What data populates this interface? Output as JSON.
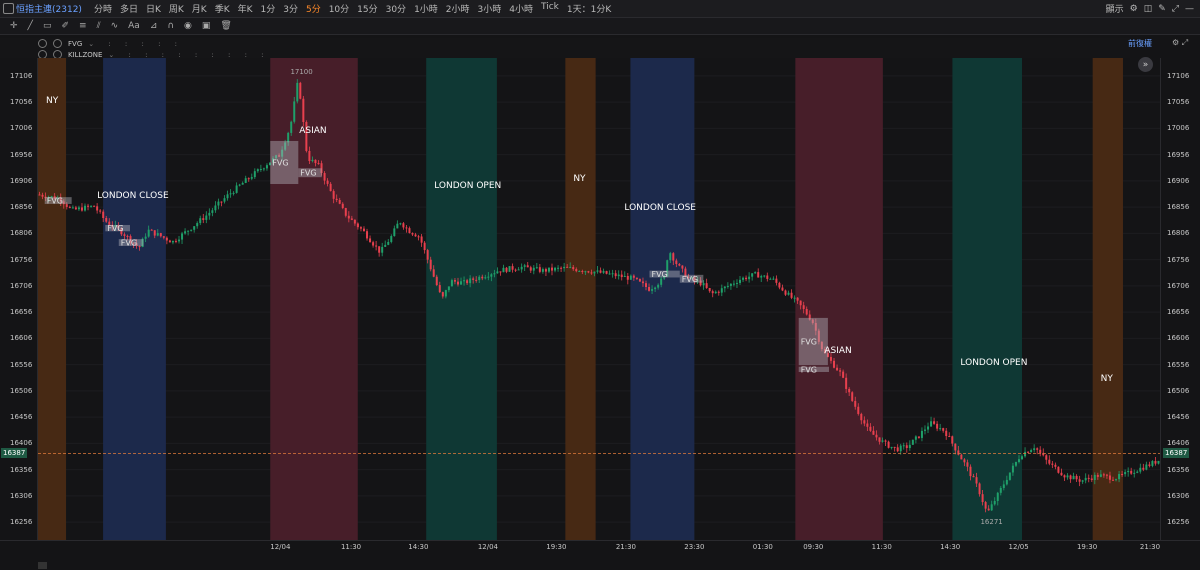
{
  "header": {
    "title": "恒指主連(2312)",
    "timeframes": [
      "分時",
      "多日",
      "日K",
      "周K",
      "月K",
      "季K",
      "年K",
      "1分",
      "3分",
      "5分",
      "10分",
      "15分",
      "30分",
      "1小時",
      "2小時",
      "3小時",
      "4小時",
      "Tick",
      "1天：1分K"
    ],
    "active_timeframe_index": 9,
    "right_label": "顯示"
  },
  "indicators": [
    {
      "name": "FVG"
    },
    {
      "name": "KILLZONE"
    }
  ],
  "restore_label": "前復權",
  "colors": {
    "background": "#141416",
    "up": "#1fa06a",
    "down": "#e8404e",
    "ny": "#4a2a14",
    "london_close": "#1c2a4e",
    "asian": "#4a1f2a",
    "london_open": "#0f3a36",
    "fvg": "#8a8a90",
    "price_line": "#e07a3a",
    "accent": "#ff8a2a"
  },
  "chart_data": {
    "type": "candlestick",
    "y_ticks": [
      17106,
      17056,
      17006,
      16956,
      16906,
      16856,
      16806,
      16756,
      16706,
      16656,
      16606,
      16556,
      16506,
      16456,
      16406,
      16356,
      16306,
      16256
    ],
    "ylim": [
      16222,
      17140
    ],
    "current_price": 16387,
    "x_labels": [
      "12/04",
      "11:30",
      "14:30",
      "12/04",
      "19:30",
      "21:30",
      "23:30",
      "01:30",
      "09:30",
      "11:30",
      "14:30",
      "12/05",
      "19:30",
      "21:30"
    ],
    "high_annotation": "17100",
    "low_annotation": "16271",
    "sessions": [
      {
        "label": "NY",
        "kind": "ny",
        "x0": 0.0,
        "x1": 0.025
      },
      {
        "label": "LONDON  CLOSE",
        "kind": "london_close",
        "x0": 0.058,
        "x1": 0.114
      },
      {
        "label": "ASIAN",
        "kind": "asian",
        "x0": 0.207,
        "x1": 0.285
      },
      {
        "label": "LONDON OPEN",
        "kind": "london_open",
        "x0": 0.346,
        "x1": 0.409
      },
      {
        "label": "NY",
        "kind": "ny",
        "x0": 0.47,
        "x1": 0.497
      },
      {
        "label": "LONDON  CLOSE",
        "kind": "london_close",
        "x0": 0.528,
        "x1": 0.585
      },
      {
        "label": "ASIAN",
        "kind": "asian",
        "x0": 0.675,
        "x1": 0.753
      },
      {
        "label": "LONDON OPEN",
        "kind": "london_open",
        "x0": 0.815,
        "x1": 0.877
      },
      {
        "label": "NY",
        "kind": "ny",
        "x0": 0.94,
        "x1": 0.967
      }
    ],
    "fvg_label": "FVG",
    "fvgs": [
      {
        "x0": 0.006,
        "x1": 0.03,
        "top": 16875,
        "bottom": 16862
      },
      {
        "x0": 0.06,
        "x1": 0.082,
        "top": 16822,
        "bottom": 16810
      },
      {
        "x0": 0.072,
        "x1": 0.094,
        "top": 16795,
        "bottom": 16782
      },
      {
        "x0": 0.207,
        "x1": 0.232,
        "top": 16982,
        "bottom": 16900
      },
      {
        "x0": 0.232,
        "x1": 0.253,
        "top": 16930,
        "bottom": 16913
      },
      {
        "x0": 0.545,
        "x1": 0.572,
        "top": 16735,
        "bottom": 16722
      },
      {
        "x0": 0.572,
        "x1": 0.593,
        "top": 16727,
        "bottom": 16712
      },
      {
        "x0": 0.678,
        "x1": 0.704,
        "top": 16645,
        "bottom": 16555
      },
      {
        "x0": 0.678,
        "x1": 0.705,
        "top": 16552,
        "bottom": 16542
      }
    ],
    "path": [
      [
        0.0,
        16880
      ],
      [
        0.02,
        16872
      ],
      [
        0.03,
        16850
      ],
      [
        0.05,
        16858
      ],
      [
        0.06,
        16830
      ],
      [
        0.075,
        16808
      ],
      [
        0.09,
        16778
      ],
      [
        0.098,
        16812
      ],
      [
        0.11,
        16800
      ],
      [
        0.12,
        16790
      ],
      [
        0.13,
        16806
      ],
      [
        0.15,
        16840
      ],
      [
        0.17,
        16880
      ],
      [
        0.19,
        16915
      ],
      [
        0.205,
        16940
      ],
      [
        0.215,
        16955
      ],
      [
        0.225,
        17010
      ],
      [
        0.232,
        17100
      ],
      [
        0.24,
        16950
      ],
      [
        0.25,
        16935
      ],
      [
        0.262,
        16880
      ],
      [
        0.275,
        16840
      ],
      [
        0.29,
        16810
      ],
      [
        0.305,
        16770
      ],
      [
        0.315,
        16800
      ],
      [
        0.322,
        16830
      ],
      [
        0.33,
        16812
      ],
      [
        0.34,
        16800
      ],
      [
        0.35,
        16740
      ],
      [
        0.36,
        16680
      ],
      [
        0.368,
        16715
      ],
      [
        0.38,
        16712
      ],
      [
        0.39,
        16720
      ],
      [
        0.41,
        16735
      ],
      [
        0.43,
        16742
      ],
      [
        0.45,
        16735
      ],
      [
        0.47,
        16740
      ],
      [
        0.49,
        16735
      ],
      [
        0.51,
        16728
      ],
      [
        0.53,
        16720
      ],
      [
        0.545,
        16700
      ],
      [
        0.558,
        16720
      ],
      [
        0.562,
        16775
      ],
      [
        0.57,
        16745
      ],
      [
        0.58,
        16720
      ],
      [
        0.592,
        16710
      ],
      [
        0.6,
        16690
      ],
      [
        0.61,
        16700
      ],
      [
        0.625,
        16718
      ],
      [
        0.64,
        16728
      ],
      [
        0.655,
        16718
      ],
      [
        0.668,
        16690
      ],
      [
        0.678,
        16672
      ],
      [
        0.69,
        16640
      ],
      [
        0.7,
        16580
      ],
      [
        0.715,
        16540
      ],
      [
        0.725,
        16490
      ],
      [
        0.74,
        16430
      ],
      [
        0.755,
        16405
      ],
      [
        0.765,
        16395
      ],
      [
        0.775,
        16400
      ],
      [
        0.785,
        16420
      ],
      [
        0.795,
        16445
      ],
      [
        0.808,
        16430
      ],
      [
        0.818,
        16395
      ],
      [
        0.828,
        16360
      ],
      [
        0.838,
        16320
      ],
      [
        0.846,
        16272
      ],
      [
        0.856,
        16310
      ],
      [
        0.866,
        16350
      ],
      [
        0.876,
        16385
      ],
      [
        0.888,
        16400
      ],
      [
        0.9,
        16370
      ],
      [
        0.915,
        16345
      ],
      [
        0.93,
        16335
      ],
      [
        0.945,
        16345
      ],
      [
        0.96,
        16340
      ],
      [
        0.975,
        16352
      ],
      [
        0.99,
        16365
      ],
      [
        1.0,
        16375
      ]
    ]
  }
}
